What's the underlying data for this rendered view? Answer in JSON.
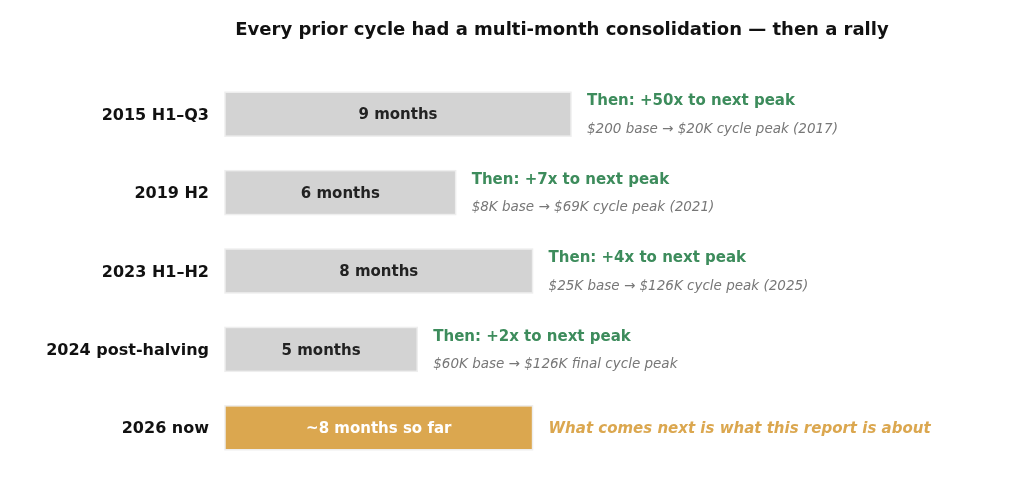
{
  "chart_data": {
    "type": "bar",
    "orientation": "horizontal",
    "title": "Every prior cycle had a multi-month consolidation — then a rally",
    "categories": [
      "2015 H1–Q3",
      "2019 H2",
      "2023 H1–H2",
      "2024 post-halving",
      "2026 now"
    ],
    "values": [
      9,
      6,
      8,
      5,
      8
    ],
    "colors": [
      "#d3d3d3",
      "#d3d3d3",
      "#d3d3d3",
      "#d3d3d3",
      "#dba74f"
    ],
    "value_labels": [
      "9 months",
      "6 months",
      "8 months",
      "5 months",
      "~8 months so far"
    ],
    "annotations": [
      {
        "text": "Then: +50x to next peak",
        "x": 9,
        "y": "2015 H1–Q3"
      },
      {
        "text": "$200 base → $20K cycle peak (2017)",
        "x": 9,
        "y": "2015 H1–Q3"
      },
      {
        "text": "Then: +7x to next peak",
        "x": 6,
        "y": "2019 H2"
      },
      {
        "text": "$8K base → $69K cycle peak (2021)",
        "x": 6,
        "y": "2019 H2"
      },
      {
        "text": "Then: +4x to next peak",
        "x": 8,
        "y": "2023 H1–H2"
      },
      {
        "text": "$25K base → $126K cycle peak (2025)",
        "x": 8,
        "y": "2023 H1–H2"
      },
      {
        "text": "Then: +2x to next peak",
        "x": 5,
        "y": "2024 post-halving"
      },
      {
        "text": "$60K base → $126K final cycle peak",
        "x": 5,
        "y": "2024 post-halving"
      },
      {
        "text": "What comes next is what this report is about",
        "x": 8,
        "y": "2026 now"
      }
    ]
  }
}
